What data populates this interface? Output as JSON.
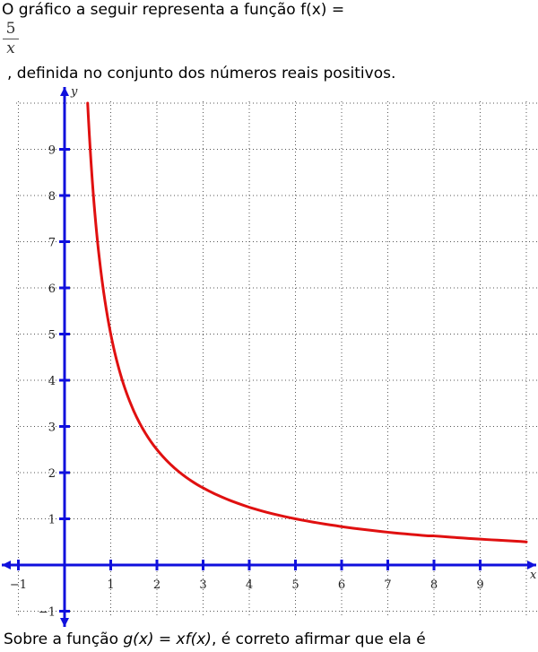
{
  "text": {
    "intro": "O gráfico a seguir representa a função f(x) =",
    "frac_numerator": "5",
    "frac_denominator": "x",
    "after": ", definida no conjunto dos números reais positivos.",
    "question_pre": "Sobre a função ",
    "question_func": "g(x) = xf(x)",
    "question_post": ", é correto afirmar que ela é"
  },
  "chart_data": {
    "type": "line",
    "title": "",
    "xlabel": "x",
    "ylabel": "y",
    "xlim": [
      -1,
      10
    ],
    "ylim": [
      -1,
      10
    ],
    "x_ticks": [
      -1,
      1,
      2,
      3,
      4,
      5,
      6,
      7,
      8,
      9
    ],
    "x_tick_labels": [
      "−1",
      "1",
      "2",
      "3",
      "4",
      "5",
      "6",
      "7",
      "8",
      "9"
    ],
    "y_ticks": [
      -1,
      1,
      2,
      3,
      4,
      5,
      6,
      7,
      8,
      9
    ],
    "y_tick_labels": [
      "−1",
      "1",
      "2",
      "3",
      "4",
      "5",
      "6",
      "7",
      "8",
      "9"
    ],
    "grid": true,
    "series": [
      {
        "function": "5/x",
        "x": [
          0.5,
          0.6,
          0.75,
          1,
          1.25,
          1.5,
          2,
          2.5,
          3,
          4,
          5,
          6,
          7,
          8,
          9,
          10
        ],
        "y": [
          10,
          8.33,
          6.67,
          5,
          4,
          3.33,
          2.5,
          2,
          1.67,
          1.25,
          1,
          0.83,
          0.71,
          0.63,
          0.56,
          0.5
        ],
        "color": "#e01010"
      }
    ],
    "axis_color": "#1010dd",
    "grid_color": "#555555"
  }
}
